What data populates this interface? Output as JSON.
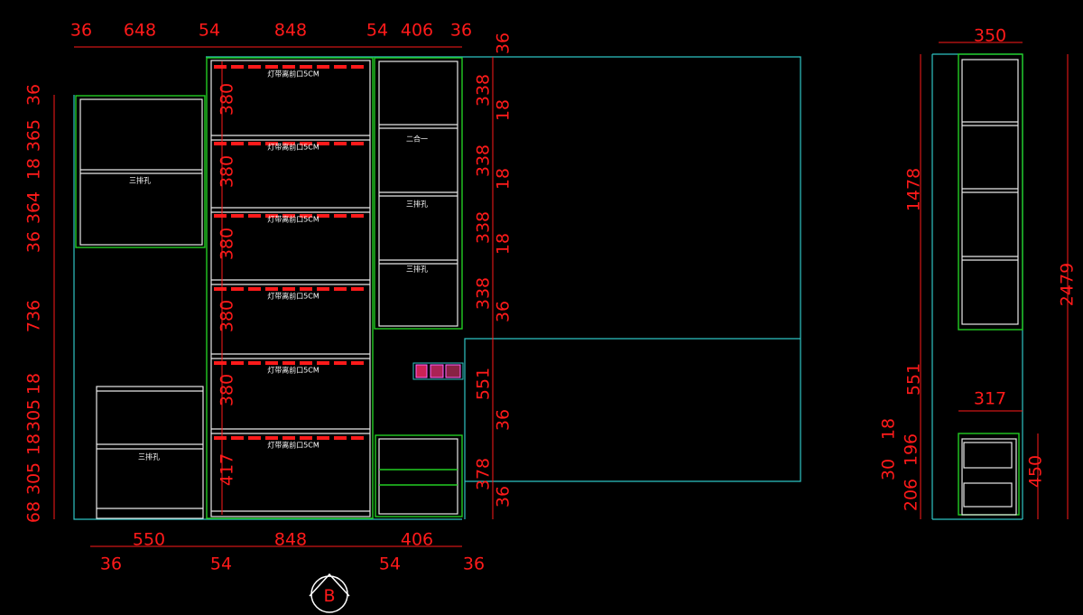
{
  "colors": {
    "background": "#000000",
    "dimension": "#ff1a1a",
    "outline": "#2ec4c4",
    "cabinet": "#e8e8e8",
    "panel_edge": "#22cc22"
  },
  "front_view": {
    "top_dims": [
      "36",
      "648",
      "54",
      "848",
      "54",
      "406",
      "36"
    ],
    "bottom_dims_row1": [
      "550",
      "848",
      "406"
    ],
    "bottom_dims_row2": [
      "36",
      "54",
      "54",
      "36"
    ],
    "left_dims": [
      "36",
      "365",
      "18",
      "364",
      "36",
      "736",
      "18",
      "305",
      "18",
      "305",
      "68"
    ],
    "middle_dims": [
      "380",
      "380",
      "380",
      "380",
      "380",
      "417"
    ],
    "right_dims": [
      "36",
      "338",
      "18",
      "338",
      "18",
      "338",
      "18",
      "338",
      "36",
      "551",
      "36",
      "378",
      "36"
    ],
    "shelf_light_label": "灯带离前口5CM",
    "hole_label": "三排孔",
    "combo_label": "二合一"
  },
  "side_view": {
    "width_top": "350",
    "upper_height": "1478",
    "total_height": "2479",
    "gap": "551",
    "lower_width": "317",
    "lower_dims": [
      "18",
      "196",
      "30",
      "206"
    ],
    "lower_height": "450"
  },
  "view_marker": {
    "label": "B",
    "icon": "section-marker-icon"
  }
}
